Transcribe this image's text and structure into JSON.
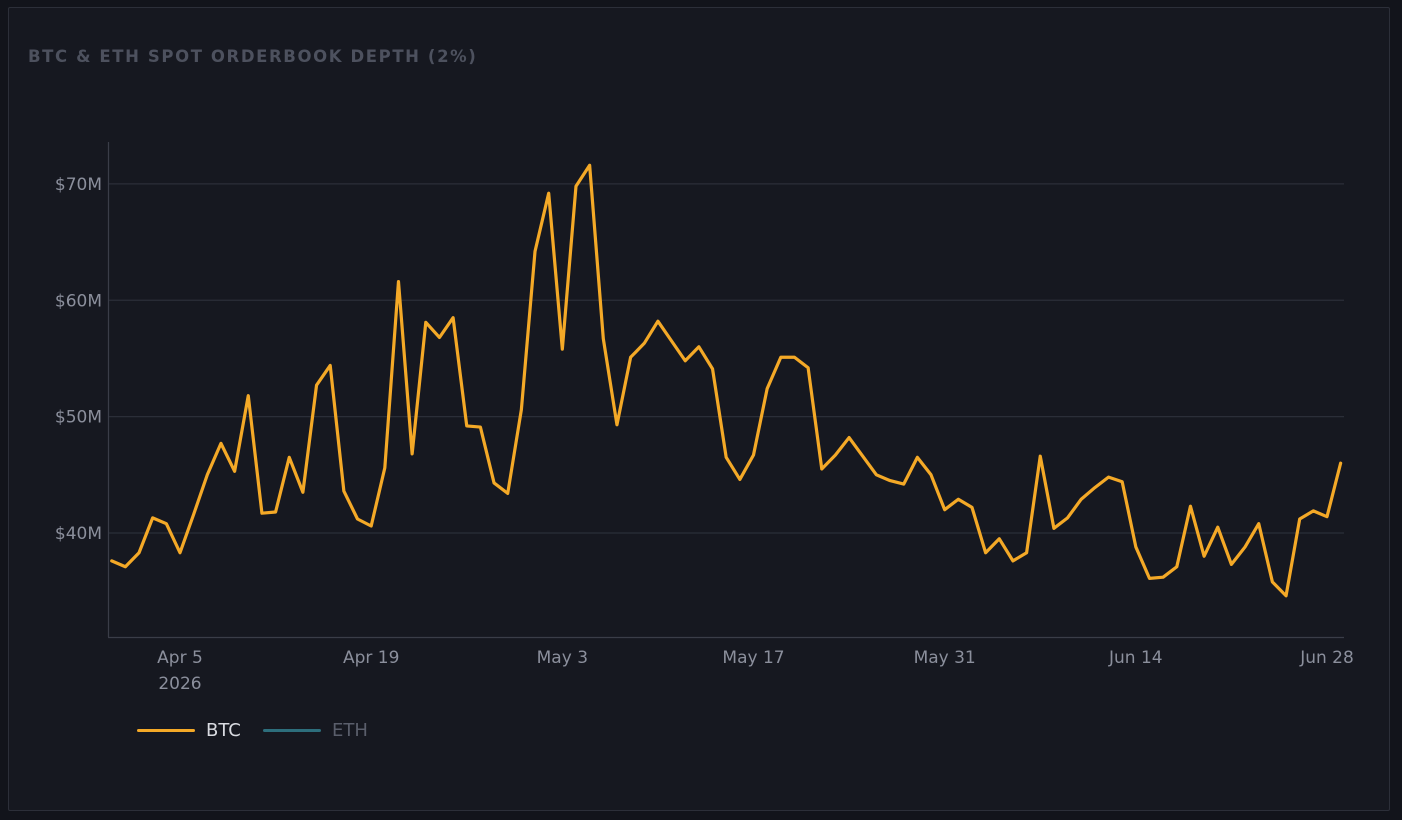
{
  "title": "BTC & ETH SPOT ORDERBOOK DEPTH (2%)",
  "legend": [
    {
      "label": "BTC",
      "color": "#f4a927",
      "active": true
    },
    {
      "label": "ETH",
      "color": "#2d6e7c",
      "active": false
    }
  ],
  "chart_data": {
    "type": "line",
    "title": "BTC & ETH SPOT ORDERBOOK DEPTH (2%)",
    "xlabel": "",
    "ylabel": "",
    "x_start": "2026-03-30",
    "x_end": "2026-06-28",
    "ylim": [
      31.06,
      73.6
    ],
    "y_ticks": [
      {
        "value": 40,
        "label": "$40M"
      },
      {
        "value": 50,
        "label": "$50M"
      },
      {
        "value": 60,
        "label": "$60M"
      },
      {
        "value": 70,
        "label": "$70M"
      }
    ],
    "x_ticks": [
      {
        "date": "2026-04-05",
        "label": "Apr 5",
        "sub": "2026"
      },
      {
        "date": "2026-04-19",
        "label": "Apr 19"
      },
      {
        "date": "2026-05-03",
        "label": "May 3"
      },
      {
        "date": "2026-05-17",
        "label": "May 17"
      },
      {
        "date": "2026-05-31",
        "label": "May 31"
      },
      {
        "date": "2026-06-14",
        "label": "Jun 14"
      },
      {
        "date": "2026-06-28",
        "label": "Jun 28"
      }
    ],
    "grid": true,
    "legend_position": "bottom-left",
    "series": [
      {
        "name": "BTC",
        "color": "#f4a927",
        "x": [
          "2026-03-31",
          "2026-04-01",
          "2026-04-02",
          "2026-04-03",
          "2026-04-04",
          "2026-04-05",
          "2026-04-06",
          "2026-04-07",
          "2026-04-08",
          "2026-04-09",
          "2026-04-10",
          "2026-04-11",
          "2026-04-12",
          "2026-04-13",
          "2026-04-14",
          "2026-04-15",
          "2026-04-16",
          "2026-04-17",
          "2026-04-18",
          "2026-04-19",
          "2026-04-20",
          "2026-04-21",
          "2026-04-22",
          "2026-04-23",
          "2026-04-24",
          "2026-04-25",
          "2026-04-26",
          "2026-04-27",
          "2026-04-28",
          "2026-04-29",
          "2026-04-30",
          "2026-05-01",
          "2026-05-02",
          "2026-05-03",
          "2026-05-04",
          "2026-05-05",
          "2026-05-06",
          "2026-05-07",
          "2026-05-08",
          "2026-05-09",
          "2026-05-10",
          "2026-05-11",
          "2026-05-12",
          "2026-05-13",
          "2026-05-14",
          "2026-05-15",
          "2026-05-16",
          "2026-05-17",
          "2026-05-18",
          "2026-05-19",
          "2026-05-20",
          "2026-05-21",
          "2026-05-22",
          "2026-05-23",
          "2026-05-24",
          "2026-05-25",
          "2026-05-26",
          "2026-05-27",
          "2026-05-28",
          "2026-05-29",
          "2026-05-30",
          "2026-05-31",
          "2026-06-01",
          "2026-06-02",
          "2026-06-03",
          "2026-06-04",
          "2026-06-05",
          "2026-06-06",
          "2026-06-07",
          "2026-06-08",
          "2026-06-09",
          "2026-06-10",
          "2026-06-11",
          "2026-06-12",
          "2026-06-13",
          "2026-06-14",
          "2026-06-15",
          "2026-06-16",
          "2026-06-17",
          "2026-06-18",
          "2026-06-19",
          "2026-06-20",
          "2026-06-21",
          "2026-06-22",
          "2026-06-23",
          "2026-06-24",
          "2026-06-25",
          "2026-06-26",
          "2026-06-27",
          "2026-06-28",
          "2026-06-29"
        ],
        "values": [
          37.6,
          37.1,
          38.3,
          41.3,
          40.8,
          38.3,
          41.6,
          45.0,
          47.7,
          45.3,
          51.8,
          41.7,
          41.8,
          46.5,
          43.5,
          52.7,
          54.4,
          43.6,
          41.2,
          40.6,
          45.6,
          61.6,
          46.8,
          58.1,
          56.8,
          58.5,
          49.2,
          49.1,
          44.3,
          43.4,
          50.6,
          64.2,
          69.2,
          55.8,
          69.8,
          71.6,
          56.7,
          49.3,
          55.1,
          56.3,
          58.2,
          56.5,
          54.8,
          56.0,
          54.1,
          46.5,
          44.6,
          46.7,
          52.4,
          55.1,
          55.1,
          54.2,
          45.5,
          46.7,
          48.2,
          46.6,
          45.0,
          44.5,
          44.2,
          46.5,
          45.0,
          42.0,
          42.9,
          42.2,
          38.3,
          39.5,
          37.6,
          38.3,
          46.6,
          40.4,
          41.3,
          42.9,
          43.9,
          44.8,
          44.4,
          38.8,
          36.1,
          36.2,
          37.1,
          42.3,
          38.0,
          40.5,
          37.3,
          38.8,
          40.8,
          35.8,
          34.6,
          41.2,
          41.9,
          41.4,
          46.0
        ]
      },
      {
        "name": "ETH",
        "color": "#2d6e7c",
        "x": [],
        "values": []
      }
    ]
  }
}
